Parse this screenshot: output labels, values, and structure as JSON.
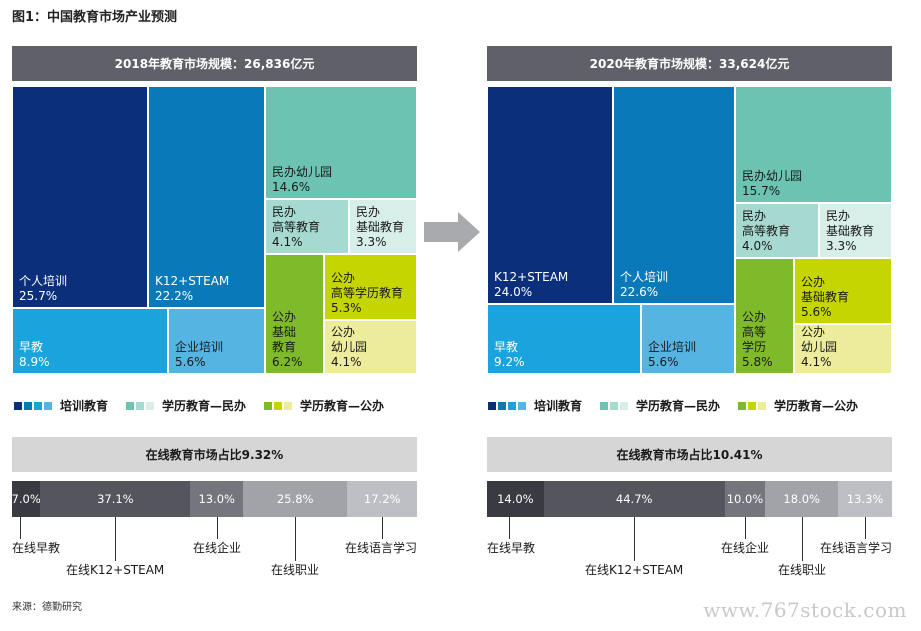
{
  "figure": {
    "title": "图1：中国教育市场产业预测",
    "source": "来源：德勤研究",
    "watermark": "www.767stock.com"
  },
  "colors": {
    "header_dark": "#5f6068",
    "header_light": "#d6d6d6",
    "navy": "#0b2f7a",
    "blue": "#0a79b9",
    "sky": "#1aa3dd",
    "light_blue": "#56b4e3",
    "teal": "#6cc3b2",
    "teal_light": "#a6d9cf",
    "teal_pale": "#d7eee9",
    "green": "#7fba2a",
    "lime": "#c5d500",
    "pale_yellow": "#ecec9c",
    "bar_darkest": "#3a3b42",
    "bar_dark": "#54555d",
    "bar_mid": "#74757d",
    "bar_light": "#a2a3a9",
    "bar_lightest": "#bebfc4"
  },
  "legend": [
    {
      "label": "培训教育",
      "swatches": [
        "#0b2f7a",
        "#0a79b9",
        "#1aa3dd",
        "#56b4e3"
      ]
    },
    {
      "label": "学历教育—民办",
      "swatches": [
        "#6cc3b2",
        "#a6d9cf",
        "#d7eee9"
      ]
    },
    {
      "label": "学历教育—公办",
      "swatches": [
        "#7fba2a",
        "#c5d500",
        "#ecec9c"
      ]
    }
  ],
  "chart_data": [
    {
      "type": "treemap",
      "title": "2018年教育市场规模：26,836亿元",
      "items": [
        {
          "name": "个人培训",
          "value": 25.7,
          "group": "培训教育"
        },
        {
          "name": "K12+STEAM",
          "value": 22.2,
          "group": "培训教育"
        },
        {
          "name": "早教",
          "value": 8.9,
          "group": "培训教育"
        },
        {
          "name": "企业培训",
          "value": 5.6,
          "group": "培训教育"
        },
        {
          "name": "民办幼儿园",
          "value": 14.6,
          "group": "学历教育—民办"
        },
        {
          "name": "民办\n高等教育",
          "value": 4.1,
          "group": "学历教育—民办"
        },
        {
          "name": "民办\n基础教育",
          "value": 3.3,
          "group": "学历教育—民办"
        },
        {
          "name": "公办\n基础\n教育",
          "value": 6.2,
          "group": "学历教育—公办"
        },
        {
          "name": "公办\n高等学历教育",
          "value": 5.3,
          "group": "学历教育—公办"
        },
        {
          "name": "公办\n幼儿园",
          "value": 4.1,
          "group": "学历教育—公办"
        }
      ]
    },
    {
      "type": "treemap",
      "title": "2020年教育市场规模：33,624亿元",
      "items": [
        {
          "name": "K12+STEAM",
          "value": 24.0,
          "group": "培训教育"
        },
        {
          "name": "个人培训",
          "value": 22.6,
          "group": "培训教育"
        },
        {
          "name": "早教",
          "value": 9.2,
          "group": "培训教育"
        },
        {
          "name": "企业培训",
          "value": 5.6,
          "group": "培训教育"
        },
        {
          "name": "民办幼儿园",
          "value": 15.7,
          "group": "学历教育—民办"
        },
        {
          "name": "民办\n高等教育",
          "value": 4.0,
          "group": "学历教育—民办"
        },
        {
          "name": "民办\n基础教育",
          "value": 3.3,
          "group": "学历教育—民办"
        },
        {
          "name": "公办\n高等\n学历",
          "value": 5.8,
          "group": "学历教育—公办"
        },
        {
          "name": "公办\n基础教育",
          "value": 5.6,
          "group": "学历教育—公办"
        },
        {
          "name": "公办\n幼儿园",
          "value": 4.1,
          "group": "学历教育—公办"
        }
      ]
    },
    {
      "type": "stacked-bar",
      "title": "在线教育市场占比9.32%",
      "segments": [
        {
          "name": "在线早教",
          "value": 7.0,
          "label": "7.0%"
        },
        {
          "name": "在线K12+STEAM",
          "value": 37.1,
          "label": "37.1%"
        },
        {
          "name": "在线企业",
          "value": 13.0,
          "label": "13.0%"
        },
        {
          "name": "在线职业",
          "value": 25.8,
          "label": "25.8%"
        },
        {
          "name": "在线语言学习",
          "value": 17.2,
          "label": "17.2%"
        }
      ]
    },
    {
      "type": "stacked-bar",
      "title": "在线教育市场占比10.41%",
      "segments": [
        {
          "name": "在线早教",
          "value": 14.0,
          "label": "14.0%"
        },
        {
          "name": "在线K12+STEAM",
          "value": 44.7,
          "label": "44.7%"
        },
        {
          "name": "在线企业",
          "value": 10.0,
          "label": "10.0%"
        },
        {
          "name": "在线职业",
          "value": 18.0,
          "label": "18.0%"
        },
        {
          "name": "在线语言学习",
          "value": 13.3,
          "label": "13.3%"
        }
      ]
    }
  ]
}
